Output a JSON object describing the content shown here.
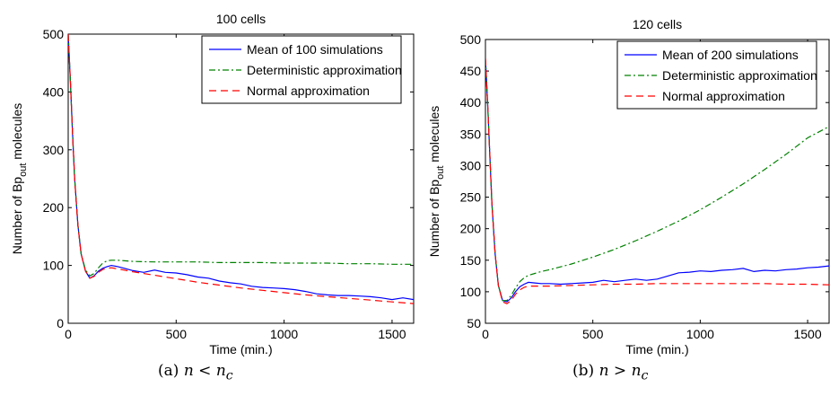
{
  "chart_data": [
    {
      "type": "line",
      "title": "100 cells",
      "xlabel": "Time (min.)",
      "ylabel": "Number of Bp",
      "ylabel_sub": "out",
      "ylabel_suffix": " molecules",
      "xlim": [
        0,
        1600
      ],
      "ylim": [
        0,
        500
      ],
      "xticks": [
        0,
        500,
        1000,
        1500
      ],
      "yticks": [
        0,
        100,
        200,
        300,
        400,
        500
      ],
      "grid": false,
      "legend": "top-right",
      "caption": {
        "prefix": "(a)",
        "lhs": "n",
        "op": "<",
        "rhs": "n",
        "rhs_sub": "c"
      },
      "series": [
        {
          "name": "Mean of 100 simulations",
          "color": "#0000ff",
          "dash": "solid",
          "x": [
            0,
            10,
            20,
            30,
            45,
            60,
            80,
            100,
            120,
            140,
            160,
            180,
            200,
            230,
            260,
            300,
            350,
            400,
            450,
            500,
            550,
            600,
            650,
            700,
            750,
            800,
            850,
            900,
            950,
            1000,
            1050,
            1100,
            1150,
            1200,
            1250,
            1300,
            1350,
            1400,
            1450,
            1500,
            1550,
            1600
          ],
          "y": [
            500,
            420,
            330,
            250,
            170,
            120,
            90,
            78,
            82,
            90,
            95,
            98,
            100,
            98,
            95,
            91,
            88,
            92,
            88,
            87,
            84,
            80,
            78,
            73,
            70,
            68,
            64,
            62,
            61,
            60,
            58,
            55,
            51,
            49,
            48,
            48,
            47,
            46,
            44,
            41,
            44,
            41
          ]
        },
        {
          "name": "Deterministic approximation",
          "color": "#008000",
          "dash": "dashdot",
          "x": [
            0,
            10,
            20,
            30,
            45,
            60,
            80,
            100,
            120,
            140,
            160,
            180,
            200,
            230,
            260,
            300,
            400,
            500,
            600,
            700,
            800,
            900,
            1000,
            1100,
            1200,
            1300,
            1400,
            1500,
            1600
          ],
          "y": [
            500,
            420,
            330,
            250,
            170,
            120,
            92,
            82,
            86,
            96,
            104,
            108,
            109,
            109,
            108,
            107,
            106,
            106,
            106,
            105,
            105,
            105,
            104,
            104,
            104,
            103,
            103,
            102,
            102
          ]
        },
        {
          "name": "Normal approximation",
          "color": "#ff0000",
          "dash": "dashed",
          "x": [
            0,
            10,
            20,
            30,
            45,
            60,
            80,
            100,
            120,
            140,
            160,
            180,
            200,
            230,
            260,
            300,
            400,
            500,
            600,
            700,
            800,
            900,
            1000,
            1100,
            1200,
            1300,
            1400,
            1500,
            1600
          ],
          "y": [
            500,
            420,
            330,
            250,
            170,
            120,
            90,
            78,
            81,
            88,
            93,
            95,
            96,
            94,
            92,
            89,
            83,
            77,
            71,
            66,
            61,
            57,
            53,
            49,
            46,
            43,
            40,
            37,
            34
          ]
        }
      ]
    },
    {
      "type": "line",
      "title": "120 cells",
      "xlabel": "Time (min.)",
      "ylabel": "Number of Bp",
      "ylabel_sub": "out",
      "ylabel_suffix": " molecules",
      "xlim": [
        0,
        1600
      ],
      "ylim": [
        50,
        500
      ],
      "xticks": [
        0,
        500,
        1000,
        1500
      ],
      "yticks": [
        50,
        100,
        150,
        200,
        250,
        300,
        350,
        400,
        450,
        500
      ],
      "grid": false,
      "legend": "top-right",
      "caption": {
        "prefix": "(b)",
        "lhs": "n",
        "op": ">",
        "rhs": "n",
        "rhs_sub": "c"
      },
      "series": [
        {
          "name": "Mean of 200 simulations",
          "color": "#0000ff",
          "dash": "solid",
          "x": [
            0,
            10,
            20,
            30,
            45,
            60,
            80,
            100,
            120,
            140,
            160,
            180,
            200,
            230,
            260,
            300,
            350,
            400,
            450,
            500,
            550,
            600,
            650,
            700,
            750,
            800,
            850,
            900,
            950,
            1000,
            1050,
            1100,
            1150,
            1200,
            1250,
            1300,
            1350,
            1400,
            1450,
            1500,
            1550,
            1600
          ],
          "y": [
            470,
            400,
            320,
            240,
            160,
            110,
            86,
            84,
            90,
            100,
            108,
            112,
            115,
            114,
            113,
            113,
            112,
            113,
            114,
            115,
            118,
            116,
            118,
            120,
            118,
            120,
            125,
            130,
            131,
            133,
            132,
            134,
            135,
            137,
            132,
            134,
            133,
            135,
            136,
            138,
            139,
            141
          ]
        },
        {
          "name": "Deterministic approximation",
          "color": "#008000",
          "dash": "dashdot",
          "x": [
            0,
            10,
            20,
            30,
            45,
            60,
            80,
            100,
            120,
            140,
            160,
            180,
            200,
            230,
            260,
            300,
            400,
            500,
            600,
            700,
            800,
            900,
            1000,
            1100,
            1200,
            1300,
            1400,
            1500,
            1600
          ],
          "y": [
            470,
            400,
            320,
            240,
            160,
            110,
            86,
            86,
            94,
            106,
            116,
            122,
            126,
            129,
            132,
            135,
            144,
            155,
            167,
            181,
            196,
            212,
            230,
            250,
            271,
            294,
            318,
            344,
            362
          ]
        },
        {
          "name": "Normal approximation",
          "color": "#ff0000",
          "dash": "dashed",
          "x": [
            0,
            10,
            20,
            30,
            45,
            60,
            80,
            100,
            120,
            140,
            160,
            180,
            200,
            230,
            260,
            300,
            400,
            500,
            600,
            700,
            800,
            900,
            1000,
            1100,
            1200,
            1300,
            1400,
            1500,
            1600
          ],
          "y": [
            470,
            400,
            320,
            240,
            160,
            110,
            84,
            81,
            86,
            96,
            103,
            107,
            109,
            109,
            109,
            109,
            110,
            111,
            112,
            112,
            113,
            113,
            113,
            113,
            113,
            113,
            112,
            112,
            111
          ]
        }
      ]
    }
  ]
}
